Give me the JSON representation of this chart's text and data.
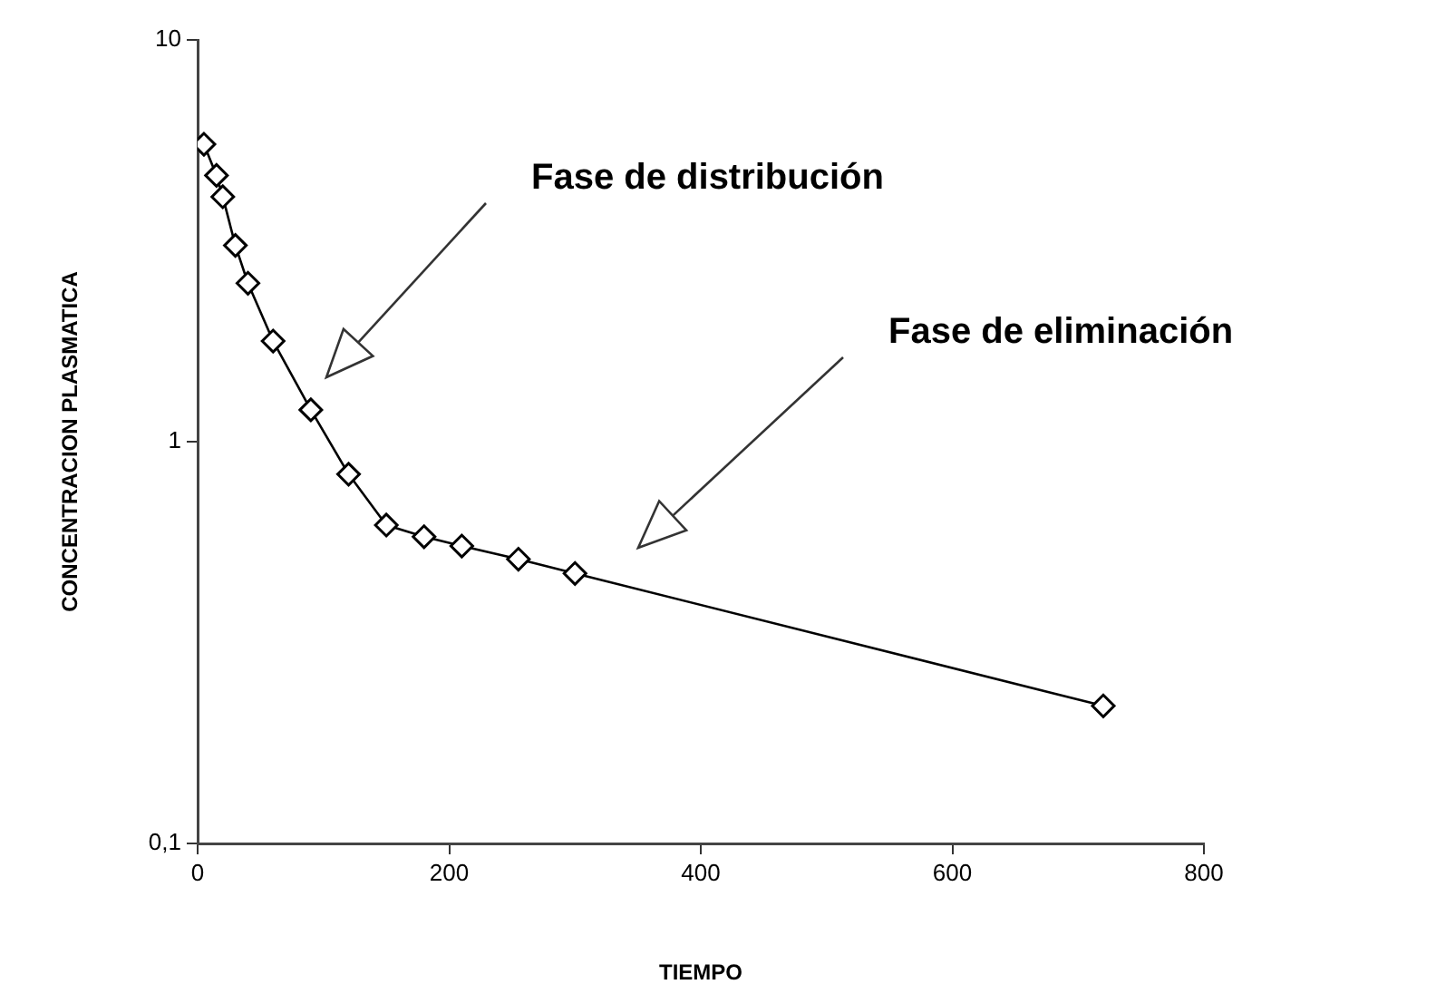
{
  "chart_data": {
    "type": "line",
    "xlabel": "TIEMPO",
    "ylabel": "CONCENTRACION PLASMATICA",
    "x": [
      5,
      15,
      20,
      30,
      40,
      60,
      90,
      120,
      150,
      180,
      210,
      255,
      300,
      720
    ],
    "series": [
      {
        "color": "#000000",
        "values": [
          5.5,
          4.6,
          4.07,
          3.08,
          2.48,
          1.78,
          1.2,
          0.83,
          0.62,
          0.58,
          0.55,
          0.51,
          0.47,
          0.22
        ]
      }
    ],
    "log": "y",
    "xlim": [
      0,
      800
    ],
    "xticks": [
      0,
      200,
      400,
      600,
      800
    ],
    "ylim": [
      0.1,
      10
    ],
    "yticks": [
      {
        "value": 0.1,
        "label": "0,1"
      },
      1,
      10
    ],
    "grid": false,
    "legend": false,
    "marker": "diamond",
    "line_style": "solid",
    "annotations": [
      "Fase de distribución",
      "Fase de eliminación"
    ]
  }
}
